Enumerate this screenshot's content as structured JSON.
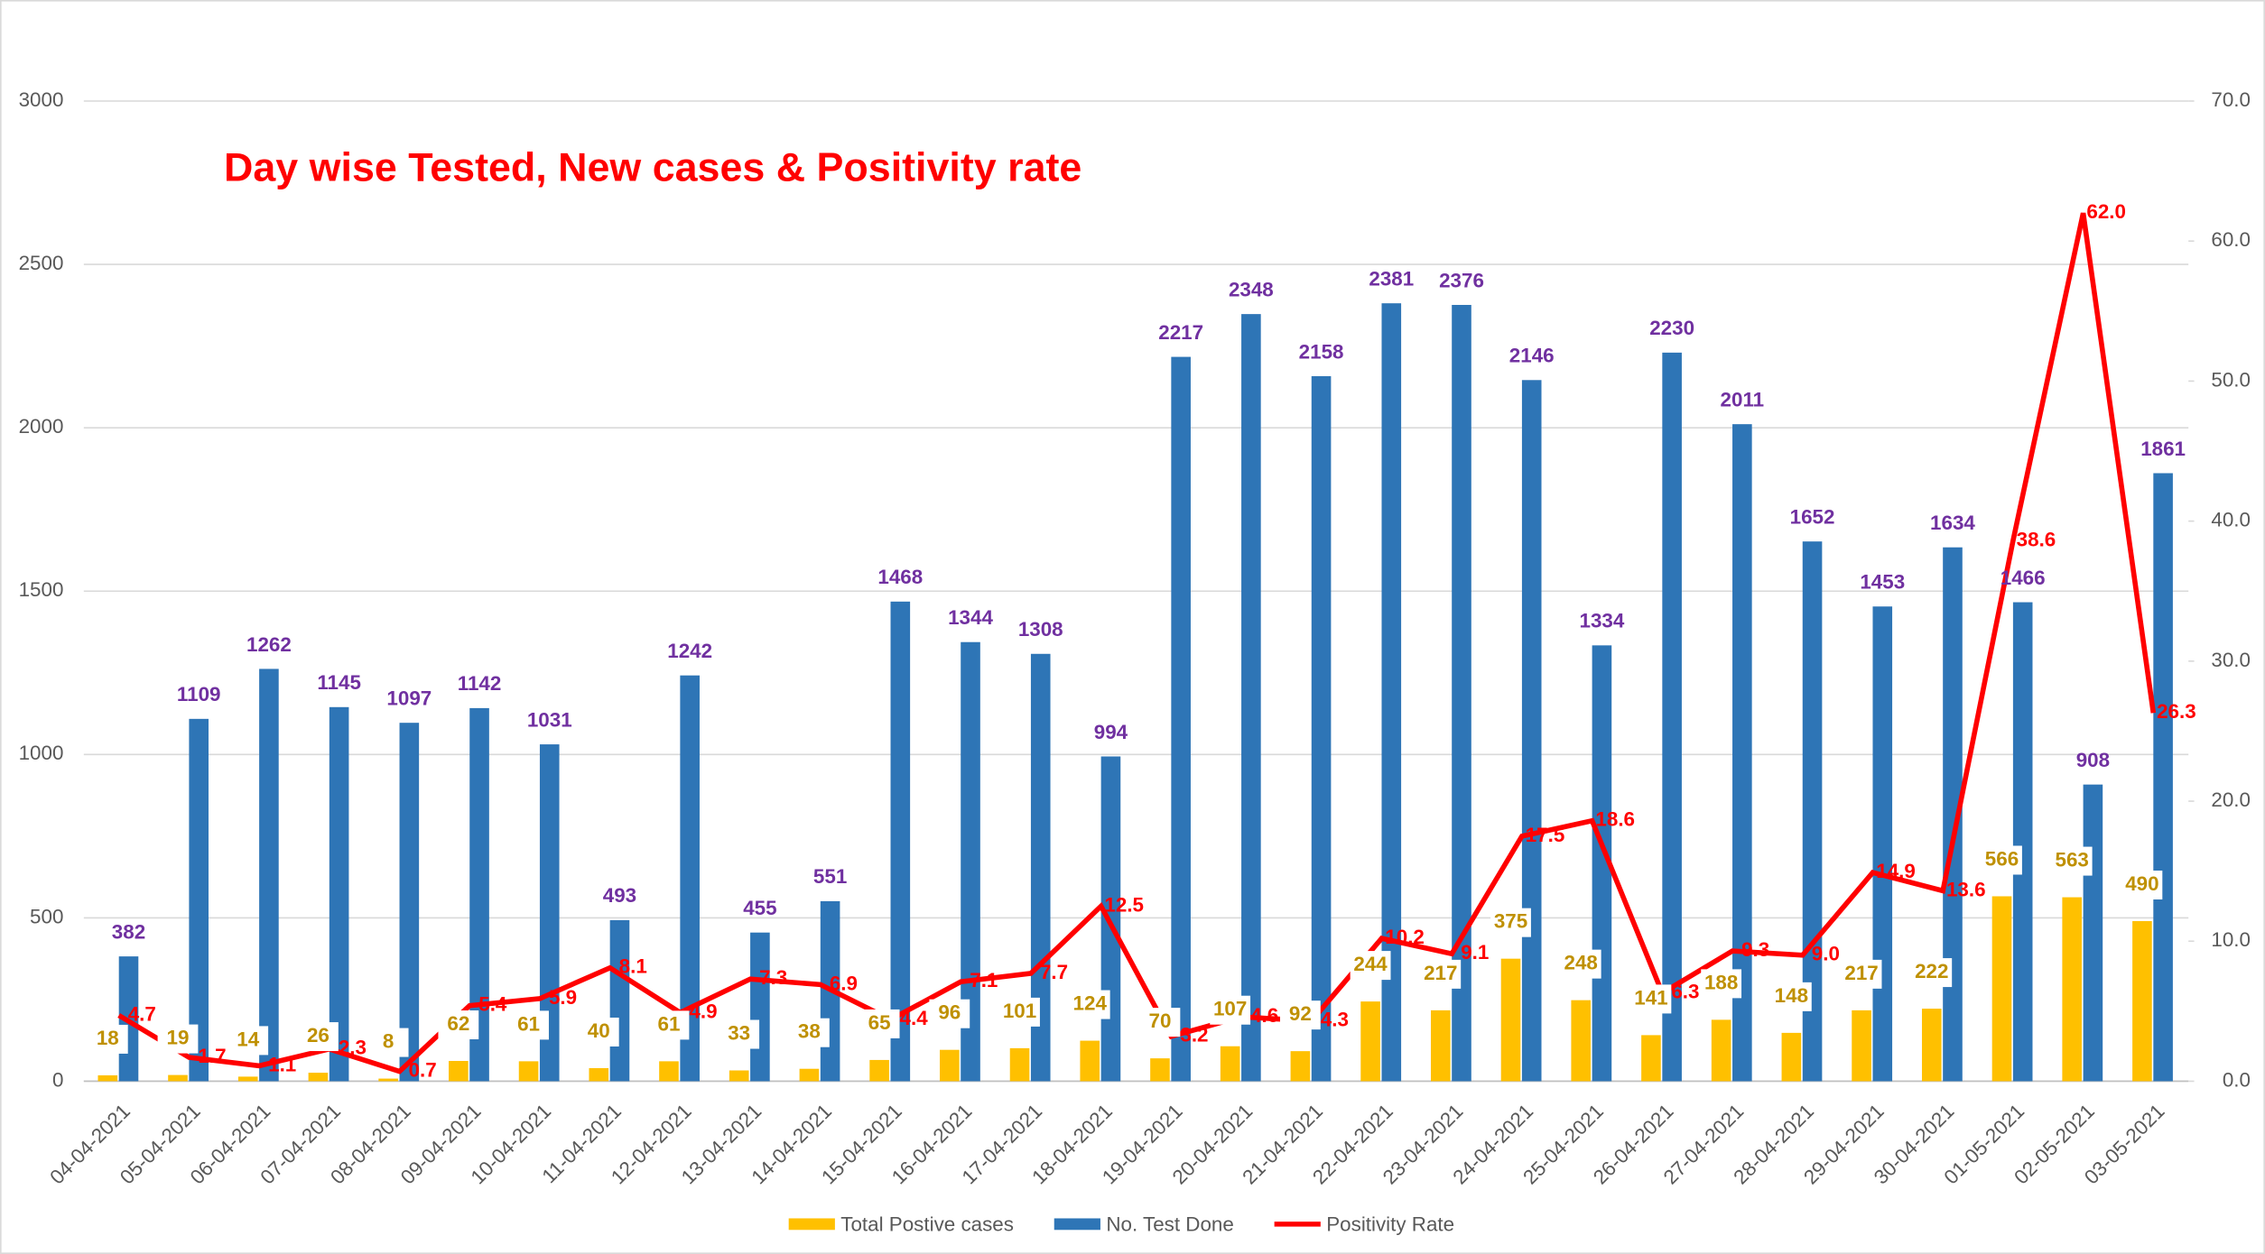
{
  "chart_data": {
    "type": "bar_line",
    "title": "Day wise Tested, New cases & Positivity rate",
    "categories": [
      "04-04-2021",
      "05-04-2021",
      "06-04-2021",
      "07-04-2021",
      "08-04-2021",
      "09-04-2021",
      "10-04-2021",
      "11-04-2021",
      "12-04-2021",
      "13-04-2021",
      "14-04-2021",
      "15-04-2021",
      "16-04-2021",
      "17-04-2021",
      "18-04-2021",
      "19-04-2021",
      "20-04-2021",
      "21-04-2021",
      "22-04-2021",
      "23-04-2021",
      "24-04-2021",
      "25-04-2021",
      "26-04-2021",
      "27-04-2021",
      "28-04-2021",
      "29-04-2021",
      "30-04-2021",
      "01-05-2021",
      "02-05-2021",
      "03-05-2021"
    ],
    "series": [
      {
        "name": "Total Postive cases",
        "type": "bar",
        "color": "#ffc000",
        "label_color": "#bf9000",
        "values": [
          18,
          19,
          14,
          26,
          8,
          62,
          61,
          40,
          61,
          33,
          38,
          65,
          96,
          101,
          124,
          70,
          107,
          92,
          244,
          217,
          375,
          248,
          141,
          188,
          148,
          217,
          222,
          566,
          563,
          490
        ]
      },
      {
        "name": "No. Test Done",
        "type": "bar",
        "color": "#2e75b6",
        "label_color": "#7030a0",
        "values": [
          382,
          1109,
          1262,
          1145,
          1097,
          1142,
          1031,
          493,
          1242,
          455,
          551,
          1468,
          1344,
          1308,
          994,
          2217,
          2348,
          2158,
          2381,
          2376,
          2146,
          1334,
          2230,
          2011,
          1652,
          1453,
          1634,
          1466,
          908,
          1861
        ]
      },
      {
        "name": "Positivity Rate",
        "type": "line",
        "axis": "y2",
        "color": "#ff0000",
        "label_color": "#ff0000",
        "values": [
          4.7,
          1.7,
          1.1,
          2.3,
          0.7,
          5.4,
          5.9,
          8.1,
          4.9,
          7.3,
          6.9,
          4.4,
          7.1,
          7.7,
          12.5,
          3.2,
          4.6,
          4.3,
          10.2,
          9.1,
          17.5,
          18.6,
          6.3,
          9.3,
          9.0,
          14.9,
          13.6,
          38.6,
          62.0,
          26.3
        ],
        "value_labels": [
          "4.7",
          "1.7",
          "1.1",
          "2.3",
          "0.7",
          "5.4",
          "5.9",
          "8.1",
          "4.9",
          "7.3",
          "6.9",
          "4.4",
          "7.1",
          "7.7",
          "12.5",
          "3.2",
          "4.6",
          "4.3",
          "10.2",
          "9.1",
          "17.5",
          "18.6",
          "6.3",
          "9.3",
          "9.0",
          "14.9",
          "13.6",
          "38.6",
          "62.0",
          "26.3"
        ]
      }
    ],
    "ylim": [
      0,
      3000
    ],
    "yticks": [
      0,
      500,
      1000,
      1500,
      2000,
      2500,
      3000
    ],
    "y2lim": [
      0,
      70
    ],
    "y2ticks": [
      {
        "value": 0,
        "label": "0.0"
      },
      {
        "value": 10,
        "label": "10.0"
      },
      {
        "value": 20,
        "label": "20.0"
      },
      {
        "value": 30,
        "label": "30.0"
      },
      {
        "value": 40,
        "label": "40.0"
      },
      {
        "value": 50,
        "label": "50.0"
      },
      {
        "value": 60,
        "label": "60.0"
      },
      {
        "value": 70,
        "label": "70.0"
      }
    ],
    "grid": true,
    "legend": "bottom"
  }
}
